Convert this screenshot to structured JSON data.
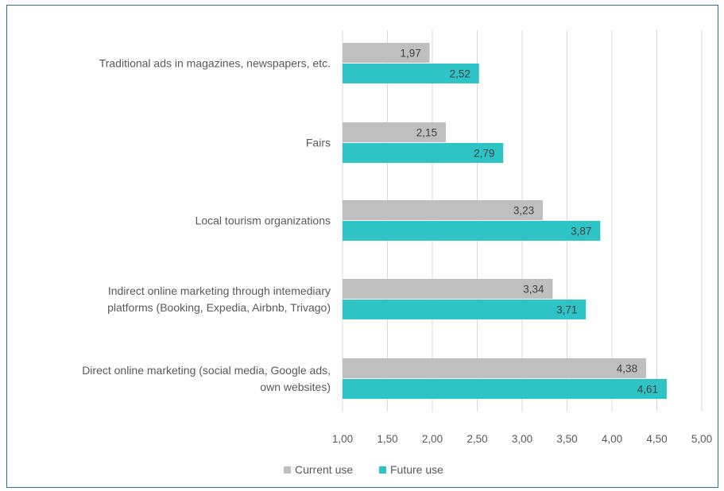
{
  "chart_data": {
    "type": "bar",
    "orientation": "horizontal",
    "categories": [
      "Traditional ads in magazines, newspapers, etc.",
      "Fairs",
      "Local tourism organizations",
      "Indirect online marketing through intemediary platforms (Booking, Expedia, Airbnb, Trivago)",
      "Direct online marketing (social media, Google ads, own websites)"
    ],
    "category_lines": [
      [
        "Traditional ads in magazines, newspapers, etc."
      ],
      [
        "Fairs"
      ],
      [
        "Local tourism organizations"
      ],
      [
        "Indirect online marketing through intemediary",
        "platforms (Booking, Expedia, Airbnb, Trivago)"
      ],
      [
        "Direct online marketing (social media, Google ads,",
        "own websites)"
      ]
    ],
    "series": [
      {
        "name": "Current use",
        "color": "#bfbfbf",
        "values": [
          1.97,
          2.15,
          3.23,
          3.34,
          4.38
        ],
        "labels": [
          "1,97",
          "2,15",
          "3,23",
          "3,34",
          "4,38"
        ]
      },
      {
        "name": "Future use",
        "color": "#2ec4c6",
        "values": [
          2.52,
          2.79,
          3.87,
          3.71,
          4.61
        ],
        "labels": [
          "2,52",
          "2,79",
          "3,87",
          "3,71",
          "4,61"
        ]
      }
    ],
    "xlim": [
      1.0,
      5.0
    ],
    "xticks": [
      1.0,
      1.5,
      2.0,
      2.5,
      3.0,
      3.5,
      4.0,
      4.5,
      5.0
    ],
    "xtick_labels": [
      "1,00",
      "1,50",
      "2,00",
      "2,50",
      "3,00",
      "3,50",
      "4,00",
      "4,50",
      "5,00"
    ],
    "grid": true,
    "legend_position": "bottom",
    "title": "",
    "xlabel": "",
    "ylabel": ""
  }
}
